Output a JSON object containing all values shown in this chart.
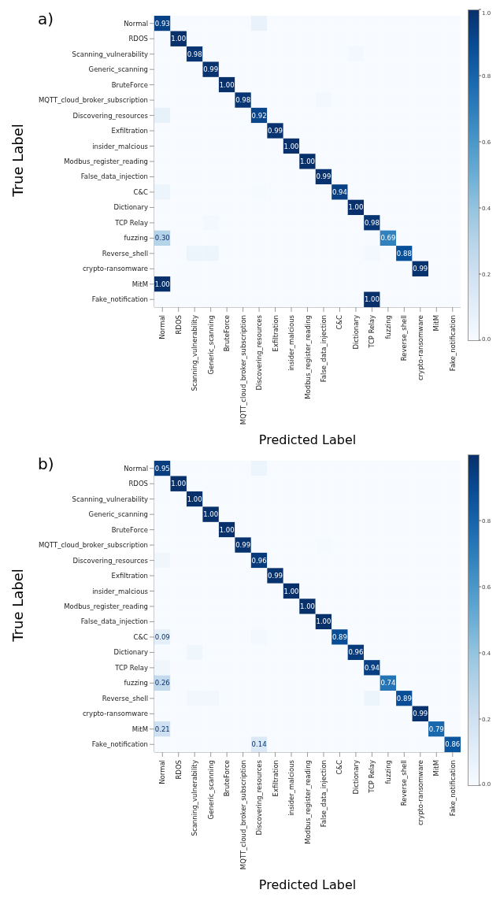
{
  "chart_data": [
    {
      "type": "heatmap",
      "title": "a)",
      "xlabel": "Predicted Label",
      "ylabel": "True Label",
      "categories": [
        "Normal",
        "RDOS",
        "Scanning_vulnerability",
        "Generic_scanning",
        "BruteForce",
        "MQTT_cloud_broker_subscription",
        "Discovering_resources",
        "Exfiltration",
        "insider_malcious",
        "Modbus_register_reading",
        "False_data_injection",
        "C&C",
        "Dictionary",
        "TCP Relay",
        "fuzzing",
        "Reverse_shell",
        "crypto-ransomware",
        "MitM",
        "Fake_notification"
      ],
      "y_categories": [
        "Normal",
        "RDOS",
        "Scanning_vulnerability",
        "Generic_scanning",
        "BruteForce",
        "MQTT_cloud_broker_subscription",
        "Discovering_resources",
        "Exfiltration",
        "insider_malcious",
        "Modbus_register_reading",
        "False_data_injection",
        "C&C",
        "Dictionary",
        "TCP Relay",
        "fuzzing",
        "Reverse_shell",
        "crypto-ransomware",
        "MitM",
        "Fake_notification"
      ],
      "cells": [
        [
          0.93,
          0,
          0,
          0,
          0,
          0,
          0.07,
          0,
          0,
          0,
          0,
          0,
          0,
          0,
          0,
          0,
          0,
          0,
          0
        ],
        [
          0,
          1.0,
          0,
          0,
          0,
          0,
          0,
          0,
          0,
          0,
          0,
          0,
          0,
          0,
          0,
          0,
          0,
          0,
          0
        ],
        [
          0,
          0,
          0.98,
          0,
          0,
          0,
          0,
          0,
          0,
          0,
          0,
          0,
          0.02,
          0,
          0,
          0,
          0,
          0,
          0
        ],
        [
          0,
          0,
          0,
          0.99,
          0,
          0,
          0,
          0,
          0,
          0,
          0,
          0,
          0,
          0,
          0,
          0,
          0,
          0,
          0
        ],
        [
          0,
          0,
          0,
          0,
          1.0,
          0,
          0,
          0,
          0,
          0,
          0,
          0,
          0,
          0,
          0,
          0,
          0,
          0,
          0
        ],
        [
          0,
          0,
          0,
          0,
          0,
          0.98,
          0,
          0,
          0,
          0,
          0.02,
          0,
          0,
          0,
          0,
          0,
          0,
          0,
          0
        ],
        [
          0.08,
          0,
          0,
          0,
          0,
          0,
          0.92,
          0,
          0,
          0,
          0,
          0,
          0,
          0,
          0,
          0,
          0,
          0,
          0
        ],
        [
          0,
          0,
          0,
          0,
          0,
          0,
          0,
          0.99,
          0,
          0,
          0,
          0,
          0,
          0,
          0,
          0,
          0,
          0,
          0
        ],
        [
          0,
          0,
          0,
          0,
          0,
          0,
          0,
          0,
          1.0,
          0,
          0,
          0,
          0,
          0,
          0,
          0,
          0,
          0,
          0
        ],
        [
          0,
          0,
          0,
          0,
          0,
          0,
          0,
          0,
          0,
          1.0,
          0,
          0,
          0,
          0,
          0,
          0,
          0,
          0,
          0
        ],
        [
          0,
          0,
          0,
          0,
          0,
          0,
          0,
          0,
          0,
          0,
          0.99,
          0,
          0,
          0,
          0,
          0,
          0,
          0,
          0
        ],
        [
          0.05,
          0,
          0,
          0,
          0,
          0,
          0.01,
          0,
          0,
          0,
          0,
          0.94,
          0,
          0,
          0,
          0,
          0,
          0,
          0
        ],
        [
          0,
          0,
          0,
          0,
          0,
          0,
          0,
          0,
          0,
          0,
          0,
          0,
          1.0,
          0,
          0,
          0,
          0,
          0,
          0
        ],
        [
          0,
          0,
          0,
          0.02,
          0,
          0,
          0,
          0,
          0,
          0,
          0,
          0,
          0,
          0.98,
          0,
          0,
          0,
          0,
          0
        ],
        [
          0.3,
          0,
          0,
          0,
          0,
          0,
          0,
          0,
          0,
          0,
          0,
          0,
          0,
          0,
          0.69,
          0,
          0,
          0,
          0
        ],
        [
          0,
          0,
          0.05,
          0.05,
          0,
          0,
          0,
          0,
          0,
          0,
          0,
          0,
          0,
          0.02,
          0,
          0.88,
          0,
          0,
          0
        ],
        [
          0,
          0,
          0,
          0,
          0,
          0,
          0,
          0,
          0,
          0,
          0,
          0,
          0,
          0,
          0,
          0,
          0.99,
          0,
          0
        ],
        [
          1.0,
          0,
          0,
          0,
          0,
          0,
          0,
          0,
          0,
          0,
          0,
          0,
          0,
          0,
          0,
          0,
          0,
          0,
          0
        ],
        [
          0,
          0,
          0,
          0,
          0,
          0,
          0,
          0,
          0,
          0,
          0,
          0,
          0,
          1.0,
          0,
          0,
          0,
          0,
          0
        ]
      ],
      "cell_labels": [
        [
          "0.93",
          null,
          null,
          null,
          null,
          null,
          null,
          null,
          null,
          null,
          null,
          null,
          null,
          null,
          null,
          null,
          null,
          null,
          null
        ],
        [
          null,
          "1.00",
          null,
          null,
          null,
          null,
          null,
          null,
          null,
          null,
          null,
          null,
          null,
          null,
          null,
          null,
          null,
          null,
          null
        ],
        [
          null,
          null,
          "0.98",
          null,
          null,
          null,
          null,
          null,
          null,
          null,
          null,
          null,
          null,
          null,
          null,
          null,
          null,
          null,
          null
        ],
        [
          null,
          null,
          null,
          "0.99",
          null,
          null,
          null,
          null,
          null,
          null,
          null,
          null,
          null,
          null,
          null,
          null,
          null,
          null,
          null
        ],
        [
          null,
          null,
          null,
          null,
          "1.00",
          null,
          null,
          null,
          null,
          null,
          null,
          null,
          null,
          null,
          null,
          null,
          null,
          null,
          null
        ],
        [
          null,
          null,
          null,
          null,
          null,
          "0.98",
          null,
          null,
          null,
          null,
          null,
          null,
          null,
          null,
          null,
          null,
          null,
          null,
          null
        ],
        [
          null,
          null,
          null,
          null,
          null,
          null,
          "0.92",
          null,
          null,
          null,
          null,
          null,
          null,
          null,
          null,
          null,
          null,
          null,
          null
        ],
        [
          null,
          null,
          null,
          null,
          null,
          null,
          null,
          "0.99",
          null,
          null,
          null,
          null,
          null,
          null,
          null,
          null,
          null,
          null,
          null
        ],
        [
          null,
          null,
          null,
          null,
          null,
          null,
          null,
          null,
          "1.00",
          null,
          null,
          null,
          null,
          null,
          null,
          null,
          null,
          null,
          null
        ],
        [
          null,
          null,
          null,
          null,
          null,
          null,
          null,
          null,
          null,
          "1.00",
          null,
          null,
          null,
          null,
          null,
          null,
          null,
          null,
          null
        ],
        [
          null,
          null,
          null,
          null,
          null,
          null,
          null,
          null,
          null,
          null,
          "0.99",
          null,
          null,
          null,
          null,
          null,
          null,
          null,
          null
        ],
        [
          null,
          null,
          null,
          null,
          null,
          null,
          null,
          null,
          null,
          null,
          null,
          "0.94",
          null,
          null,
          null,
          null,
          null,
          null,
          null
        ],
        [
          null,
          null,
          null,
          null,
          null,
          null,
          null,
          null,
          null,
          null,
          null,
          null,
          "1.00",
          null,
          null,
          null,
          null,
          null,
          null
        ],
        [
          null,
          null,
          null,
          null,
          null,
          null,
          null,
          null,
          null,
          null,
          null,
          null,
          null,
          "0.98",
          null,
          null,
          null,
          null,
          null
        ],
        [
          "0.30",
          null,
          null,
          null,
          null,
          null,
          null,
          null,
          null,
          null,
          null,
          null,
          null,
          null,
          "0.69",
          null,
          null,
          null,
          null
        ],
        [
          null,
          null,
          null,
          null,
          null,
          null,
          null,
          null,
          null,
          null,
          null,
          null,
          null,
          null,
          null,
          "0.88",
          null,
          null,
          null
        ],
        [
          null,
          null,
          null,
          null,
          null,
          null,
          null,
          null,
          null,
          null,
          null,
          null,
          null,
          null,
          null,
          null,
          "0.99",
          null,
          null
        ],
        [
          "1.00",
          null,
          null,
          null,
          null,
          null,
          null,
          null,
          null,
          null,
          null,
          null,
          null,
          null,
          null,
          null,
          null,
          null,
          null
        ],
        [
          null,
          null,
          null,
          null,
          null,
          null,
          null,
          null,
          null,
          null,
          null,
          null,
          null,
          "1.00",
          null,
          null,
          null,
          null,
          null
        ]
      ],
      "clim": [
        0,
        1
      ],
      "cticks": [
        {
          "value": 0,
          "label": "0.0"
        },
        {
          "value": 0.2,
          "label": "0.2"
        },
        {
          "value": 0.4,
          "label": "0.4"
        },
        {
          "value": 0.6,
          "label": "0.6"
        },
        {
          "value": 0.8,
          "label": "0.8"
        },
        {
          "value": 1,
          "label": "1.0"
        }
      ]
    },
    {
      "type": "heatmap",
      "title": "b)",
      "xlabel": "Predicted Label",
      "ylabel": "True Label",
      "categories": [
        "Normal",
        "RDOS",
        "Scanning_vulnerability",
        "Generic_scanning",
        "BruteForce",
        "MQTT_cloud_broker_subscription",
        "Discovering_resources",
        "Exfiltration",
        "insider_malcious",
        "Modbus_register_reading",
        "False_data_injection",
        "C&C",
        "Dictionary",
        "TCP Relay",
        "fuzzing",
        "Reverse_shell",
        "crypto-ransomware",
        "MitM",
        "Fake_notification"
      ],
      "y_categories": [
        "Normal",
        "RDOS",
        "Scanning_vulnerability",
        "Generic_scanning",
        "BruteForce",
        "MQTT_cloud_broker_subscription",
        "Discovering_resources",
        "Exfiltration",
        "insider_malcious",
        "Modbus_register_reading",
        "False_data_injection",
        "C&C",
        "Dictionary",
        "TCP Relay",
        "fuzzing",
        "Reverse_shell",
        "crypto-ransomware",
        "MitM",
        "Fake_notification"
      ],
      "cells": [
        [
          0.95,
          0,
          0,
          0,
          0,
          0,
          0.05,
          0,
          0,
          0,
          0,
          0,
          0,
          0,
          0,
          0,
          0,
          0,
          0
        ],
        [
          0,
          1.0,
          0,
          0,
          0,
          0,
          0,
          0,
          0,
          0,
          0,
          0,
          0,
          0,
          0,
          0,
          0,
          0,
          0
        ],
        [
          0,
          0,
          1.0,
          0,
          0,
          0,
          0,
          0,
          0,
          0,
          0,
          0,
          0,
          0,
          0,
          0,
          0,
          0,
          0
        ],
        [
          0,
          0,
          0,
          1.0,
          0,
          0,
          0,
          0,
          0,
          0,
          0,
          0,
          0,
          0,
          0,
          0,
          0,
          0,
          0
        ],
        [
          0,
          0,
          0,
          0,
          1.0,
          0,
          0,
          0,
          0,
          0,
          0,
          0,
          0,
          0,
          0,
          0,
          0,
          0,
          0
        ],
        [
          0,
          0,
          0,
          0,
          0,
          0.99,
          0,
          0,
          0,
          0,
          0.01,
          0,
          0,
          0,
          0,
          0,
          0,
          0,
          0
        ],
        [
          0.04,
          0,
          0,
          0,
          0,
          0,
          0.96,
          0,
          0,
          0,
          0,
          0,
          0,
          0,
          0,
          0,
          0,
          0,
          0
        ],
        [
          0,
          0,
          0,
          0,
          0,
          0,
          0,
          0.99,
          0,
          0,
          0,
          0,
          0,
          0,
          0,
          0,
          0,
          0,
          0
        ],
        [
          0,
          0,
          0,
          0,
          0,
          0,
          0,
          0,
          1.0,
          0,
          0,
          0,
          0,
          0,
          0,
          0,
          0,
          0,
          0
        ],
        [
          0,
          0,
          0,
          0,
          0,
          0,
          0,
          0,
          0,
          1.0,
          0,
          0,
          0,
          0,
          0,
          0,
          0,
          0,
          0
        ],
        [
          0,
          0,
          0,
          0,
          0,
          0,
          0,
          0,
          0,
          0,
          1.0,
          0,
          0,
          0,
          0,
          0,
          0,
          0,
          0
        ],
        [
          0.09,
          0,
          0,
          0,
          0,
          0,
          0.02,
          0,
          0,
          0,
          0,
          0.89,
          0,
          0,
          0,
          0,
          0,
          0,
          0
        ],
        [
          0,
          0,
          0.04,
          0,
          0,
          0,
          0,
          0,
          0,
          0,
          0,
          0,
          0.96,
          0,
          0,
          0,
          0,
          0,
          0
        ],
        [
          0.04,
          0,
          0,
          0,
          0,
          0,
          0,
          0,
          0,
          0,
          0,
          0,
          0,
          0.94,
          0,
          0,
          0,
          0,
          0
        ],
        [
          0.26,
          0,
          0,
          0,
          0,
          0,
          0,
          0,
          0,
          0,
          0,
          0,
          0,
          0,
          0.74,
          0,
          0,
          0,
          0
        ],
        [
          0,
          0,
          0.03,
          0.03,
          0,
          0,
          0,
          0,
          0,
          0,
          0,
          0,
          0,
          0.05,
          0,
          0.89,
          0,
          0,
          0
        ],
        [
          0,
          0,
          0,
          0,
          0,
          0,
          0,
          0,
          0,
          0,
          0,
          0,
          0,
          0,
          0,
          0,
          0.99,
          0,
          0
        ],
        [
          0.21,
          0,
          0,
          0,
          0,
          0,
          0,
          0,
          0,
          0,
          0,
          0,
          0,
          0,
          0,
          0,
          0,
          0.79,
          0
        ],
        [
          0,
          0,
          0,
          0,
          0,
          0,
          0.14,
          0,
          0,
          0,
          0,
          0,
          0,
          0,
          0,
          0,
          0,
          0,
          0.86
        ]
      ],
      "cell_labels": [
        [
          "0.95",
          null,
          null,
          null,
          null,
          null,
          null,
          null,
          null,
          null,
          null,
          null,
          null,
          null,
          null,
          null,
          null,
          null,
          null
        ],
        [
          null,
          "1.00",
          null,
          null,
          null,
          null,
          null,
          null,
          null,
          null,
          null,
          null,
          null,
          null,
          null,
          null,
          null,
          null,
          null
        ],
        [
          null,
          null,
          "1.00",
          null,
          null,
          null,
          null,
          null,
          null,
          null,
          null,
          null,
          null,
          null,
          null,
          null,
          null,
          null,
          null
        ],
        [
          null,
          null,
          null,
          "1.00",
          null,
          null,
          null,
          null,
          null,
          null,
          null,
          null,
          null,
          null,
          null,
          null,
          null,
          null,
          null
        ],
        [
          null,
          null,
          null,
          null,
          "1.00",
          null,
          null,
          null,
          null,
          null,
          null,
          null,
          null,
          null,
          null,
          null,
          null,
          null,
          null
        ],
        [
          null,
          null,
          null,
          null,
          null,
          "0.99",
          null,
          null,
          null,
          null,
          null,
          null,
          null,
          null,
          null,
          null,
          null,
          null,
          null
        ],
        [
          null,
          null,
          null,
          null,
          null,
          null,
          "0.96",
          null,
          null,
          null,
          null,
          null,
          null,
          null,
          null,
          null,
          null,
          null,
          null
        ],
        [
          null,
          null,
          null,
          null,
          null,
          null,
          null,
          "0.99",
          null,
          null,
          null,
          null,
          null,
          null,
          null,
          null,
          null,
          null,
          null
        ],
        [
          null,
          null,
          null,
          null,
          null,
          null,
          null,
          null,
          "1.00",
          null,
          null,
          null,
          null,
          null,
          null,
          null,
          null,
          null,
          null
        ],
        [
          null,
          null,
          null,
          null,
          null,
          null,
          null,
          null,
          null,
          "1.00",
          null,
          null,
          null,
          null,
          null,
          null,
          null,
          null,
          null
        ],
        [
          null,
          null,
          null,
          null,
          null,
          null,
          null,
          null,
          null,
          null,
          "1.00",
          null,
          null,
          null,
          null,
          null,
          null,
          null,
          null
        ],
        [
          "0.09",
          null,
          null,
          null,
          null,
          null,
          null,
          null,
          null,
          null,
          null,
          "0.89",
          null,
          null,
          null,
          null,
          null,
          null,
          null
        ],
        [
          null,
          null,
          null,
          null,
          null,
          null,
          null,
          null,
          null,
          null,
          null,
          null,
          "0.96",
          null,
          null,
          null,
          null,
          null,
          null
        ],
        [
          null,
          null,
          null,
          null,
          null,
          null,
          null,
          null,
          null,
          null,
          null,
          null,
          null,
          "0.94",
          null,
          null,
          null,
          null,
          null
        ],
        [
          "0.26",
          null,
          null,
          null,
          null,
          null,
          null,
          null,
          null,
          null,
          null,
          null,
          null,
          null,
          "0.74",
          null,
          null,
          null,
          null
        ],
        [
          null,
          null,
          null,
          null,
          null,
          null,
          null,
          null,
          null,
          null,
          null,
          null,
          null,
          null,
          null,
          "0.89",
          null,
          null,
          null
        ],
        [
          null,
          null,
          null,
          null,
          null,
          null,
          null,
          null,
          null,
          null,
          null,
          null,
          null,
          null,
          null,
          null,
          "0.99",
          null,
          null
        ],
        [
          "0.21",
          null,
          null,
          null,
          null,
          null,
          null,
          null,
          null,
          null,
          null,
          null,
          null,
          null,
          null,
          null,
          null,
          "0.79",
          null
        ],
        [
          null,
          null,
          null,
          null,
          null,
          null,
          "0.14",
          null,
          null,
          null,
          null,
          null,
          null,
          null,
          null,
          null,
          null,
          null,
          "0.86"
        ]
      ],
      "clim": [
        0,
        1
      ],
      "cticks": [
        {
          "value": 0,
          "label": "0.0"
        },
        {
          "value": 0.2,
          "label": "0.2"
        },
        {
          "value": 0.4,
          "label": "0.4"
        },
        {
          "value": 0.6,
          "label": "0.6"
        },
        {
          "value": 0.8,
          "label": "0.8"
        }
      ]
    }
  ]
}
